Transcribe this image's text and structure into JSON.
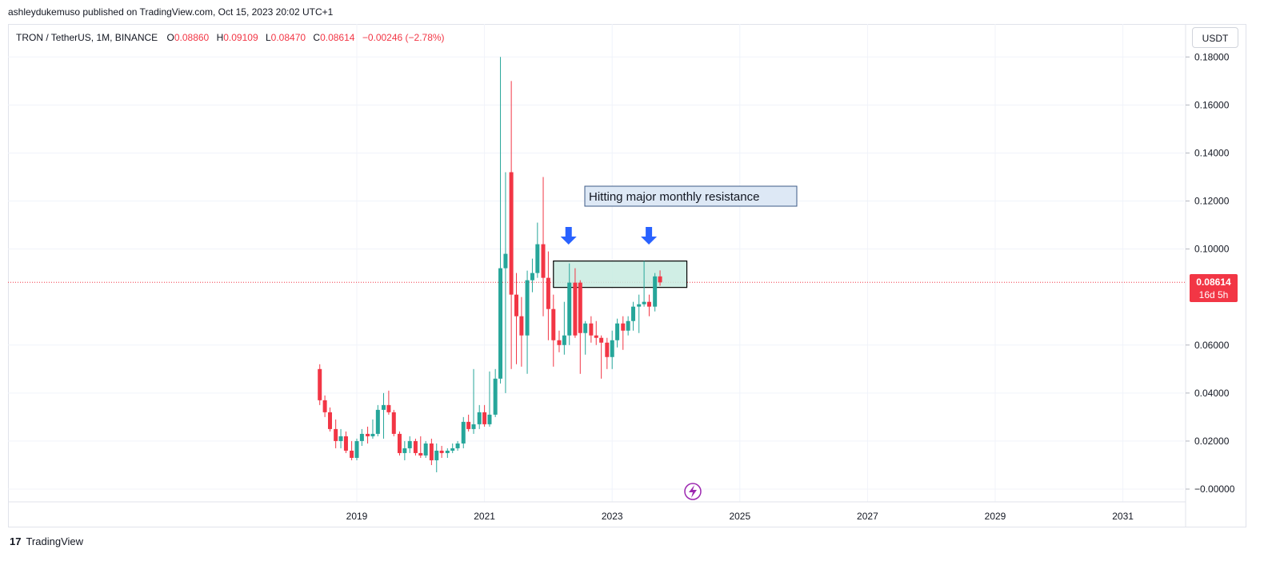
{
  "header": {
    "publish_text": "ashleydukemuso published on TradingView.com, Oct 15, 2023 20:02 UTC+1"
  },
  "legend": {
    "symbol": "TRON / TetherUS, 1M, BINANCE",
    "open_label": "O",
    "open": "0.08860",
    "high_label": "H",
    "high": "0.09109",
    "low_label": "L",
    "low": "0.08470",
    "close_label": "C",
    "close": "0.08614",
    "change": "−0.00246 (−2.78%)"
  },
  "unit": "USDT",
  "price_badge": {
    "price": "0.08614",
    "countdown": "16d 5h"
  },
  "annotation": {
    "text": "Hitting major monthly resistance"
  },
  "footer": {
    "logo": "17",
    "brand": "TradingView"
  },
  "colors": {
    "up": "#26a69a",
    "down": "#f23645",
    "zone_fill": "#c8ebe0",
    "arrow": "#2962ff"
  },
  "chart_data": {
    "type": "candlestick",
    "ylim": [
      -0.005,
      0.182
    ],
    "xlim": [
      2018.0,
      2032.0
    ],
    "y_ticks": [
      "0.18000",
      "0.16000",
      "0.14000",
      "0.12000",
      "0.10000",
      "0.06000",
      "0.04000",
      "0.02000",
      "−0.00000"
    ],
    "y_tick_values": [
      0.18,
      0.16,
      0.14,
      0.12,
      0.1,
      0.06,
      0.04,
      0.02,
      0.0
    ],
    "x_ticks": [
      "2019",
      "2021",
      "2023",
      "2025",
      "2027",
      "2029",
      "2031"
    ],
    "x_tick_values": [
      2019,
      2021,
      2023,
      2025,
      2027,
      2029,
      2031
    ],
    "current_price": 0.08614,
    "resistance_zone": {
      "low": 0.084,
      "high": 0.095,
      "x_from": 2022.08,
      "x_to": 2024.17
    },
    "arrows_at": [
      2022.33,
      2023.5
    ],
    "candles": [
      [
        2018.42,
        0.05,
        0.052,
        0.035,
        0.037
      ],
      [
        2018.5,
        0.037,
        0.039,
        0.03,
        0.032
      ],
      [
        2018.58,
        0.032,
        0.034,
        0.024,
        0.025
      ],
      [
        2018.67,
        0.025,
        0.029,
        0.017,
        0.02
      ],
      [
        2018.75,
        0.02,
        0.025,
        0.017,
        0.022
      ],
      [
        2018.83,
        0.022,
        0.024,
        0.015,
        0.016
      ],
      [
        2018.92,
        0.016,
        0.02,
        0.012,
        0.013
      ],
      [
        2019.0,
        0.013,
        0.021,
        0.012,
        0.02
      ],
      [
        2019.08,
        0.02,
        0.025,
        0.018,
        0.023
      ],
      [
        2019.17,
        0.023,
        0.026,
        0.019,
        0.022
      ],
      [
        2019.25,
        0.022,
        0.029,
        0.021,
        0.023
      ],
      [
        2019.33,
        0.023,
        0.035,
        0.022,
        0.033
      ],
      [
        2019.42,
        0.033,
        0.04,
        0.021,
        0.035
      ],
      [
        2019.5,
        0.035,
        0.041,
        0.031,
        0.032
      ],
      [
        2019.58,
        0.032,
        0.033,
        0.022,
        0.023
      ],
      [
        2019.67,
        0.023,
        0.024,
        0.014,
        0.015
      ],
      [
        2019.75,
        0.015,
        0.02,
        0.012,
        0.017
      ],
      [
        2019.83,
        0.017,
        0.022,
        0.015,
        0.02
      ],
      [
        2019.92,
        0.02,
        0.021,
        0.014,
        0.015
      ],
      [
        2020.0,
        0.015,
        0.022,
        0.013,
        0.014
      ],
      [
        2020.08,
        0.014,
        0.02,
        0.013,
        0.019
      ],
      [
        2020.17,
        0.019,
        0.021,
        0.01,
        0.012
      ],
      [
        2020.25,
        0.012,
        0.019,
        0.007,
        0.016
      ],
      [
        2020.33,
        0.016,
        0.018,
        0.013,
        0.015
      ],
      [
        2020.42,
        0.015,
        0.017,
        0.013,
        0.016
      ],
      [
        2020.5,
        0.016,
        0.019,
        0.015,
        0.017
      ],
      [
        2020.58,
        0.017,
        0.02,
        0.016,
        0.019
      ],
      [
        2020.67,
        0.019,
        0.03,
        0.017,
        0.028
      ],
      [
        2020.75,
        0.028,
        0.031,
        0.024,
        0.025
      ],
      [
        2020.83,
        0.025,
        0.05,
        0.023,
        0.027
      ],
      [
        2020.92,
        0.027,
        0.035,
        0.025,
        0.032
      ],
      [
        2021.0,
        0.032,
        0.035,
        0.026,
        0.027
      ],
      [
        2021.08,
        0.027,
        0.049,
        0.026,
        0.031
      ],
      [
        2021.17,
        0.031,
        0.05,
        0.03,
        0.046
      ],
      [
        2021.25,
        0.046,
        0.18,
        0.044,
        0.092
      ],
      [
        2021.33,
        0.092,
        0.132,
        0.04,
        0.098
      ],
      [
        2021.42,
        0.132,
        0.17,
        0.05,
        0.081
      ],
      [
        2021.5,
        0.081,
        0.09,
        0.052,
        0.072
      ],
      [
        2021.58,
        0.072,
        0.08,
        0.051,
        0.064
      ],
      [
        2021.67,
        0.064,
        0.091,
        0.048,
        0.087
      ],
      [
        2021.75,
        0.087,
        0.096,
        0.082,
        0.09
      ],
      [
        2021.83,
        0.09,
        0.111,
        0.088,
        0.102
      ],
      [
        2021.92,
        0.102,
        0.13,
        0.072,
        0.088
      ],
      [
        2022.0,
        0.088,
        0.099,
        0.062,
        0.075
      ],
      [
        2022.08,
        0.075,
        0.081,
        0.051,
        0.062
      ],
      [
        2022.17,
        0.062,
        0.066,
        0.057,
        0.06
      ],
      [
        2022.25,
        0.06,
        0.078,
        0.056,
        0.064
      ],
      [
        2022.33,
        0.064,
        0.094,
        0.06,
        0.086
      ],
      [
        2022.42,
        0.086,
        0.092,
        0.063,
        0.064
      ],
      [
        2022.5,
        0.086,
        0.087,
        0.048,
        0.065
      ],
      [
        2022.58,
        0.065,
        0.07,
        0.056,
        0.069
      ],
      [
        2022.67,
        0.069,
        0.072,
        0.061,
        0.064
      ],
      [
        2022.75,
        0.064,
        0.07,
        0.06,
        0.063
      ],
      [
        2022.83,
        0.063,
        0.064,
        0.046,
        0.061
      ],
      [
        2022.92,
        0.061,
        0.063,
        0.05,
        0.055
      ],
      [
        2023.0,
        0.055,
        0.066,
        0.05,
        0.062
      ],
      [
        2023.08,
        0.062,
        0.071,
        0.059,
        0.069
      ],
      [
        2023.17,
        0.069,
        0.072,
        0.058,
        0.066
      ],
      [
        2023.25,
        0.066,
        0.072,
        0.064,
        0.07
      ],
      [
        2023.33,
        0.07,
        0.078,
        0.066,
        0.076
      ],
      [
        2023.42,
        0.076,
        0.081,
        0.065,
        0.077
      ],
      [
        2023.5,
        0.077,
        0.095,
        0.076,
        0.078
      ],
      [
        2023.58,
        0.078,
        0.081,
        0.072,
        0.076
      ],
      [
        2023.67,
        0.076,
        0.09,
        0.074,
        0.0886
      ],
      [
        2023.75,
        0.0886,
        0.0911,
        0.0847,
        0.0861
      ]
    ]
  }
}
